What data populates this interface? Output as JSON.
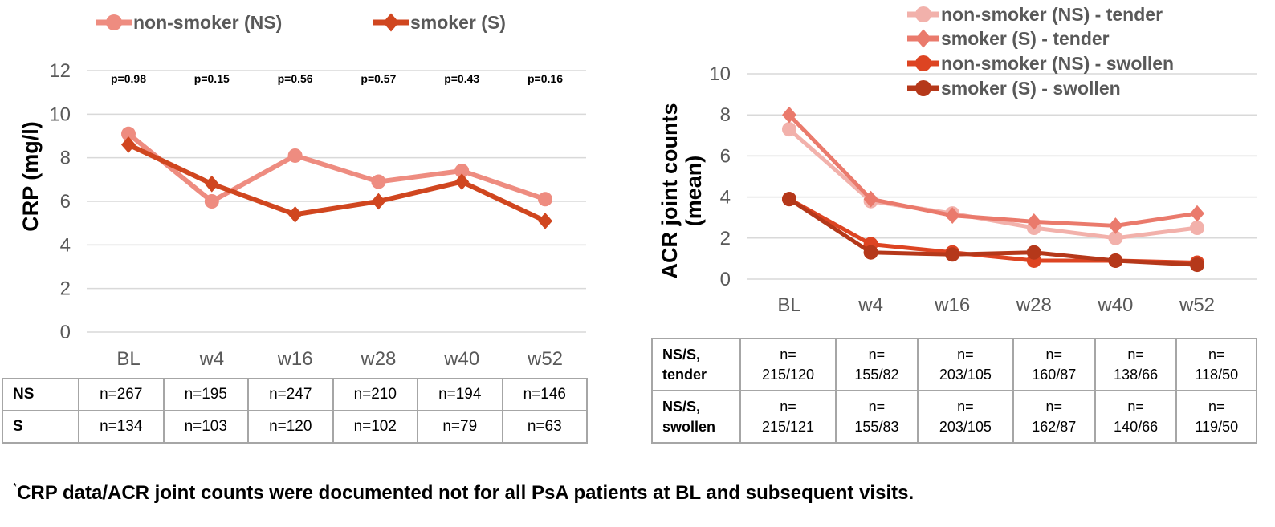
{
  "chart_data": [
    {
      "type": "line",
      "title": "",
      "xlabel": "",
      "ylabel": "CRP (mg/l)",
      "categories": [
        "BL",
        "w4",
        "w16",
        "w28",
        "w40",
        "w52"
      ],
      "ylim": [
        0,
        12
      ],
      "yticks": [
        0,
        2,
        4,
        6,
        8,
        10,
        12
      ],
      "grid": true,
      "legend_position": "top",
      "series": [
        {
          "name": "non-smoker (NS)",
          "marker": "circle",
          "color": "#EE8C80",
          "values": [
            9.1,
            6.0,
            8.1,
            6.9,
            7.4,
            6.1
          ]
        },
        {
          "name": "smoker (S)",
          "marker": "diamond",
          "color": "#D0461F",
          "values": [
            8.6,
            6.8,
            5.4,
            6.0,
            6.9,
            5.1
          ]
        }
      ],
      "annotations": [
        "p=0.98",
        "p=0.15",
        "p=0.56",
        "p=0.57",
        "p=0.43",
        "p=0.16"
      ],
      "table": {
        "rows": [
          {
            "label": "NS",
            "cells": [
              "n=267",
              "n=195",
              "n=247",
              "n=210",
              "n=194",
              "n=146"
            ]
          },
          {
            "label": "S",
            "cells": [
              "n=134",
              "n=103",
              "n=120",
              "n=102",
              "n=79",
              "n=63"
            ]
          }
        ]
      }
    },
    {
      "type": "line",
      "title": "",
      "xlabel": "",
      "ylabel": "ACR joint counts (mean)",
      "ylabel_lines": [
        "ACR joint counts",
        "(mean)"
      ],
      "categories": [
        "BL",
        "w4",
        "w16",
        "w28",
        "w40",
        "w52"
      ],
      "ylim": [
        0,
        10
      ],
      "yticks": [
        0,
        2,
        4,
        6,
        8,
        10
      ],
      "grid": true,
      "legend_position": "top-right",
      "series": [
        {
          "name": "non-smoker (NS) - tender",
          "marker": "circle",
          "color": "#F2B1AB",
          "values": [
            7.3,
            3.8,
            3.2,
            2.5,
            2.0,
            2.5
          ]
        },
        {
          "name": "smoker (S) - tender",
          "marker": "diamond",
          "color": "#EA7A6C",
          "values": [
            8.0,
            3.9,
            3.1,
            2.8,
            2.6,
            3.2
          ]
        },
        {
          "name": "non-smoker (NS) - swollen",
          "marker": "circle",
          "color": "#DD4422",
          "values": [
            3.9,
            1.7,
            1.3,
            0.9,
            0.9,
            0.8
          ]
        },
        {
          "name": "smoker (S) - swollen",
          "marker": "circle",
          "color": "#B5381A",
          "values": [
            3.9,
            1.3,
            1.2,
            1.3,
            0.9,
            0.7
          ]
        }
      ],
      "table": {
        "rows": [
          {
            "label_lines": [
              "NS/S,",
              "tender"
            ],
            "cells": [
              [
                "n=",
                "215/120"
              ],
              [
                "n=",
                "155/82"
              ],
              [
                "n=",
                "203/105"
              ],
              [
                "n=",
                "160/87"
              ],
              [
                "n=",
                "138/66"
              ],
              [
                "n=",
                "118/50"
              ]
            ]
          },
          {
            "label_lines": [
              "NS/S,",
              "swollen"
            ],
            "cells": [
              [
                "n=",
                "215/121"
              ],
              [
                "n=",
                "155/83"
              ],
              [
                "n=",
                "203/105"
              ],
              [
                "n=",
                "162/87"
              ],
              [
                "n=",
                "140/66"
              ],
              [
                "n=",
                "119/50"
              ]
            ]
          }
        ]
      }
    }
  ],
  "footnote": {
    "marker": "*",
    "text": "CRP data/ACR joint counts were documented not for all PsA patients at BL and subsequent visits."
  }
}
